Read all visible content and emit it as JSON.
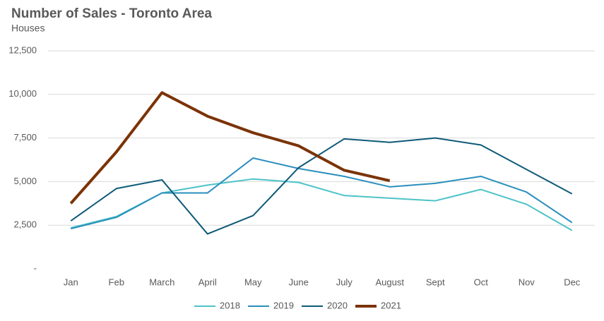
{
  "chart_data": {
    "type": "line",
    "title": "Number of Sales - Toronto Area",
    "subtitle": "Houses",
    "categories": [
      "Jan",
      "Feb",
      "March",
      "April",
      "May",
      "June",
      "July",
      "August",
      "Sept",
      "Oct",
      "Nov",
      "Dec"
    ],
    "series": [
      {
        "name": "2018",
        "color": "#4dc3c8",
        "values": [
          2350,
          3000,
          4350,
          4800,
          5150,
          4950,
          4200,
          4050,
          3900,
          4550,
          3700,
          2200
        ]
      },
      {
        "name": "2019",
        "color": "#2a8fbd",
        "values": [
          2300,
          2950,
          4350,
          4350,
          6350,
          5750,
          5300,
          4700,
          4900,
          5300,
          4400,
          2650
        ]
      },
      {
        "name": "2020",
        "color": "#0e5a78",
        "values": [
          2750,
          4600,
          5100,
          2000,
          3050,
          5800,
          7450,
          7250,
          7500,
          7100,
          5700,
          4300
        ]
      },
      {
        "name": "2021",
        "color": "#7b3306",
        "values": [
          3750,
          6700,
          10100,
          8750,
          7800,
          7050,
          5650,
          5050,
          null,
          null,
          null,
          null
        ]
      }
    ],
    "ylim": [
      0,
      12500
    ],
    "yticks": [
      {
        "value": 0,
        "label": "-"
      },
      {
        "value": 2500,
        "label": "2,500"
      },
      {
        "value": 5000,
        "label": "5,000"
      },
      {
        "value": 7500,
        "label": "7,500"
      },
      {
        "value": 10000,
        "label": "10,000"
      },
      {
        "value": 12500,
        "label": "12,500"
      }
    ],
    "grid": true,
    "legend": "bottom"
  }
}
